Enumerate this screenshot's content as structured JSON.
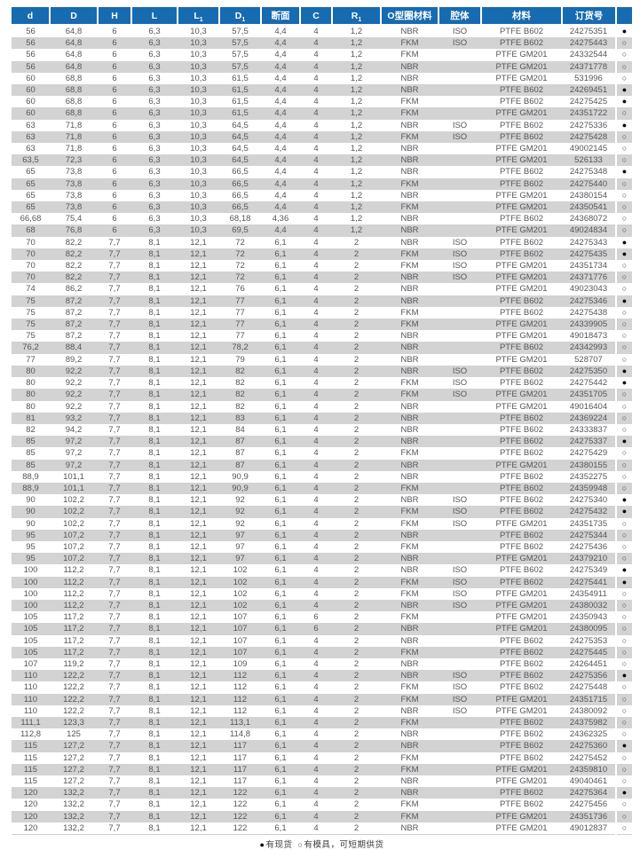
{
  "colors": {
    "header_bg": "#176bb0",
    "row_alt_bg": "#d3d3d3",
    "text": "#55565b"
  },
  "table": {
    "columns": [
      {
        "key": "d",
        "label": "d",
        "sub": ""
      },
      {
        "key": "D",
        "label": "D",
        "sub": ""
      },
      {
        "key": "H",
        "label": "H",
        "sub": ""
      },
      {
        "key": "L",
        "label": "L",
        "sub": ""
      },
      {
        "key": "L1",
        "label": "L",
        "sub": "1"
      },
      {
        "key": "D1",
        "label": "D",
        "sub": "1"
      },
      {
        "key": "cross-section",
        "label": "断面",
        "sub": ""
      },
      {
        "key": "C",
        "label": "C",
        "sub": ""
      },
      {
        "key": "R1",
        "label": "R",
        "sub": "1"
      },
      {
        "key": "o-ring-material",
        "label": "O型圈材料",
        "sub": ""
      },
      {
        "key": "cavity",
        "label": "腔体",
        "sub": ""
      },
      {
        "key": "material",
        "label": "材料",
        "sub": ""
      },
      {
        "key": "order-number",
        "label": "订货号",
        "sub": ""
      },
      {
        "key": "availability",
        "label": "",
        "sub": ""
      }
    ],
    "rows": [
      [
        "56",
        "64,8",
        "6",
        "6,3",
        "10,3",
        "57,5",
        "4,4",
        "4",
        "1,2",
        "NBR",
        "ISO",
        "PTFE B602",
        "24275351",
        "●"
      ],
      [
        "56",
        "64,8",
        "6",
        "6,3",
        "10,3",
        "57,5",
        "4,4",
        "4",
        "1,2",
        "FKM",
        "ISO",
        "PTFE B602",
        "24275443",
        "○"
      ],
      [
        "56",
        "64,8",
        "6",
        "6,3",
        "10,3",
        "57,5",
        "4,4",
        "4",
        "1,2",
        "FKM",
        "",
        "PTFE GM201",
        "24332544",
        "○"
      ],
      [
        "56",
        "64,8",
        "6",
        "6,3",
        "10,3",
        "57,5",
        "4,4",
        "4",
        "1,2",
        "NBR",
        "",
        "PTFE GM201",
        "24371778",
        "○"
      ],
      [
        "60",
        "68,8",
        "6",
        "6,3",
        "10,3",
        "61,5",
        "4,4",
        "4",
        "1,2",
        "NBR",
        "",
        "PTFE GM201",
        "531996",
        "○"
      ],
      [
        "60",
        "68,8",
        "6",
        "6,3",
        "10,3",
        "61,5",
        "4,4",
        "4",
        "1,2",
        "NBR",
        "",
        "PTFE B602",
        "24269451",
        "●"
      ],
      [
        "60",
        "68,8",
        "6",
        "6,3",
        "10,3",
        "61,5",
        "4,4",
        "4",
        "1,2",
        "FKM",
        "",
        "PTFE B602",
        "24275425",
        "●"
      ],
      [
        "60",
        "68,8",
        "6",
        "6,3",
        "10,3",
        "61,5",
        "4,4",
        "4",
        "1,2",
        "FKM",
        "",
        "PTFE GM201",
        "24351722",
        "○"
      ],
      [
        "63",
        "71,8",
        "6",
        "6,3",
        "10,3",
        "64,5",
        "4,4",
        "4",
        "1,2",
        "NBR",
        "ISO",
        "PTFE B602",
        "24275336",
        "●"
      ],
      [
        "63",
        "71,8",
        "6",
        "6,3",
        "10,3",
        "64,5",
        "4,4",
        "4",
        "1,2",
        "FKM",
        "ISO",
        "PTFE B602",
        "24275428",
        "○"
      ],
      [
        "63",
        "71,8",
        "6",
        "6,3",
        "10,3",
        "64,5",
        "4,4",
        "4",
        "1,2",
        "NBR",
        "",
        "PTFE GM201",
        "49002145",
        "○"
      ],
      [
        "63,5",
        "72,3",
        "6",
        "6,3",
        "10,3",
        "64,5",
        "4,4",
        "4",
        "1,2",
        "NBR",
        "",
        "PTFE GM201",
        "526133",
        "○"
      ],
      [
        "65",
        "73,8",
        "6",
        "6,3",
        "10,3",
        "66,5",
        "4,4",
        "4",
        "1,2",
        "NBR",
        "",
        "PTFE B602",
        "24275348",
        "●"
      ],
      [
        "65",
        "73,8",
        "6",
        "6,3",
        "10,3",
        "66,5",
        "4,4",
        "4",
        "1,2",
        "FKM",
        "",
        "PTFE B602",
        "24275440",
        "○"
      ],
      [
        "65",
        "73,8",
        "6",
        "6,3",
        "10,3",
        "66,5",
        "4,4",
        "4",
        "1,2",
        "NBR",
        "",
        "PTFE GM201",
        "24380154",
        "○"
      ],
      [
        "65",
        "73,8",
        "6",
        "6,3",
        "10,3",
        "66,5",
        "4,4",
        "4",
        "1,2",
        "FKM",
        "",
        "PTFE GM201",
        "24350541",
        "○"
      ],
      [
        "66,68",
        "75,4",
        "6",
        "6,3",
        "10,3",
        "68,18",
        "4,36",
        "4",
        "1,2",
        "NBR",
        "",
        "PTFE B602",
        "24368072",
        "○"
      ],
      [
        "68",
        "76,8",
        "6",
        "6,3",
        "10,3",
        "69,5",
        "4,4",
        "4",
        "1,2",
        "NBR",
        "",
        "PTFE GM201",
        "49024834",
        "○"
      ],
      [
        "70",
        "82,2",
        "7,7",
        "8,1",
        "12,1",
        "72",
        "6,1",
        "4",
        "2",
        "NBR",
        "ISO",
        "PTFE B602",
        "24275343",
        "●"
      ],
      [
        "70",
        "82,2",
        "7,7",
        "8,1",
        "12,1",
        "72",
        "6,1",
        "4",
        "2",
        "FKM",
        "ISO",
        "PTFE B602",
        "24275435",
        "●"
      ],
      [
        "70",
        "82,2",
        "7,7",
        "8,1",
        "12,1",
        "72",
        "6,1",
        "4",
        "2",
        "FKM",
        "ISO",
        "PTFE GM201",
        "24351734",
        "○"
      ],
      [
        "70",
        "82,2",
        "7,7",
        "8,1",
        "12,1",
        "72",
        "6,1",
        "4",
        "2",
        "NBR",
        "ISO",
        "PTFE GM201",
        "24371776",
        "○"
      ],
      [
        "74",
        "86,2",
        "7,7",
        "8,1",
        "12,1",
        "76",
        "6,1",
        "4",
        "2",
        "NBR",
        "",
        "PTFE GM201",
        "49023043",
        "○"
      ],
      [
        "75",
        "87,2",
        "7,7",
        "8,1",
        "12,1",
        "77",
        "6,1",
        "4",
        "2",
        "NBR",
        "",
        "PTFE B602",
        "24275346",
        "●"
      ],
      [
        "75",
        "87,2",
        "7,7",
        "8,1",
        "12,1",
        "77",
        "6,1",
        "4",
        "2",
        "FKM",
        "",
        "PTFE B602",
        "24275438",
        "○"
      ],
      [
        "75",
        "87,2",
        "7,7",
        "8,1",
        "12,1",
        "77",
        "6,1",
        "4",
        "2",
        "FKM",
        "",
        "PTFE GM201",
        "24339905",
        "○"
      ],
      [
        "75",
        "87,2",
        "7,7",
        "8,1",
        "12,1",
        "77",
        "6,1",
        "4",
        "2",
        "NBR",
        "",
        "PTFE GM201",
        "49018473",
        "○"
      ],
      [
        "76,2",
        "88,4",
        "7,7",
        "8,1",
        "12,1",
        "78,2",
        "6,1",
        "4",
        "2",
        "NBR",
        "",
        "PTFE B602",
        "24342993",
        "○"
      ],
      [
        "77",
        "89,2",
        "7,7",
        "8,1",
        "12,1",
        "79",
        "6,1",
        "4",
        "2",
        "NBR",
        "",
        "PTFE GM201",
        "528707",
        "○"
      ],
      [
        "80",
        "92,2",
        "7,7",
        "8,1",
        "12,1",
        "82",
        "6,1",
        "4",
        "2",
        "NBR",
        "ISO",
        "PTFE B602",
        "24275350",
        "●"
      ],
      [
        "80",
        "92,2",
        "7,7",
        "8,1",
        "12,1",
        "82",
        "6,1",
        "4",
        "2",
        "FKM",
        "ISO",
        "PTFE B602",
        "24275442",
        "●"
      ],
      [
        "80",
        "92,2",
        "7,7",
        "8,1",
        "12,1",
        "82",
        "6,1",
        "4",
        "2",
        "FKM",
        "ISO",
        "PTFE GM201",
        "24351705",
        "○"
      ],
      [
        "80",
        "92,2",
        "7,7",
        "8,1",
        "12,1",
        "82",
        "6,1",
        "4",
        "2",
        "NBR",
        "",
        "PTFE GM201",
        "49016404",
        "○"
      ],
      [
        "81",
        "93,2",
        "7,7",
        "8,1",
        "12,1",
        "83",
        "6,1",
        "4",
        "2",
        "NBR",
        "",
        "PTFE B602",
        "24369224",
        "○"
      ],
      [
        "82",
        "94,2",
        "7,7",
        "8,1",
        "12,1",
        "84",
        "6,1",
        "4",
        "2",
        "NBR",
        "",
        "PTFE B602",
        "24333837",
        "○"
      ],
      [
        "85",
        "97,2",
        "7,7",
        "8,1",
        "12,1",
        "87",
        "6,1",
        "4",
        "2",
        "NBR",
        "",
        "PTFE B602",
        "24275337",
        "●"
      ],
      [
        "85",
        "97,2",
        "7,7",
        "8,1",
        "12,1",
        "87",
        "6,1",
        "4",
        "2",
        "FKM",
        "",
        "PTFE B602",
        "24275429",
        "○"
      ],
      [
        "85",
        "97,2",
        "7,7",
        "8,1",
        "12,1",
        "87",
        "6,1",
        "4",
        "2",
        "NBR",
        "",
        "PTFE GM201",
        "24380155",
        "○"
      ],
      [
        "88,9",
        "101,1",
        "7,7",
        "8,1",
        "12,1",
        "90,9",
        "6,1",
        "4",
        "2",
        "NBR",
        "",
        "PTFE B602",
        "24352275",
        "○"
      ],
      [
        "88,9",
        "101,1",
        "7,7",
        "8,1",
        "12,1",
        "90,9",
        "6,1",
        "4",
        "2",
        "FKM",
        "",
        "PTFE B602",
        "24359948",
        "○"
      ],
      [
        "90",
        "102,2",
        "7,7",
        "8,1",
        "12,1",
        "92",
        "6,1",
        "4",
        "2",
        "NBR",
        "ISO",
        "PTFE B602",
        "24275340",
        "●"
      ],
      [
        "90",
        "102,2",
        "7,7",
        "8,1",
        "12,1",
        "92",
        "6,1",
        "4",
        "2",
        "FKM",
        "ISO",
        "PTFE B602",
        "24275432",
        "●"
      ],
      [
        "90",
        "102,2",
        "7,7",
        "8,1",
        "12,1",
        "92",
        "6,1",
        "4",
        "2",
        "FKM",
        "ISO",
        "PTFE GM201",
        "24351735",
        "○"
      ],
      [
        "95",
        "107,2",
        "7,7",
        "8,1",
        "12,1",
        "97",
        "6,1",
        "4",
        "2",
        "NBR",
        "",
        "PTFE B602",
        "24275344",
        "○"
      ],
      [
        "95",
        "107,2",
        "7,7",
        "8,1",
        "12,1",
        "97",
        "6,1",
        "4",
        "2",
        "FKM",
        "",
        "PTFE B602",
        "24275436",
        "○"
      ],
      [
        "95",
        "107,2",
        "7,7",
        "8,1",
        "12,1",
        "97",
        "6,1",
        "4",
        "2",
        "NBR",
        "",
        "PTFE GM201",
        "24379210",
        "○"
      ],
      [
        "100",
        "112,2",
        "7,7",
        "8,1",
        "12,1",
        "102",
        "6,1",
        "4",
        "2",
        "NBR",
        "ISO",
        "PTFE B602",
        "24275349",
        "●"
      ],
      [
        "100",
        "112,2",
        "7,7",
        "8,1",
        "12,1",
        "102",
        "6,1",
        "4",
        "2",
        "FKM",
        "ISO",
        "PTFE B602",
        "24275441",
        "●"
      ],
      [
        "100",
        "112,2",
        "7,7",
        "8,1",
        "12,1",
        "102",
        "6,1",
        "4",
        "2",
        "FKM",
        "ISO",
        "PTFE GM201",
        "24354911",
        "○"
      ],
      [
        "100",
        "112,2",
        "7,7",
        "8,1",
        "12,1",
        "102",
        "6,1",
        "4",
        "2",
        "NBR",
        "ISO",
        "PTFE GM201",
        "24380032",
        "○"
      ],
      [
        "105",
        "117,2",
        "7,7",
        "8,1",
        "12,1",
        "107",
        "6,1",
        "6",
        "2",
        "FKM",
        "",
        "PTFE GM201",
        "24350943",
        "○"
      ],
      [
        "105",
        "117,2",
        "7,7",
        "8,1",
        "12,1",
        "107",
        "6,1",
        "6",
        "2",
        "NBR",
        "",
        "PTFE GM201",
        "24380095",
        "○"
      ],
      [
        "105",
        "117,2",
        "7,7",
        "8,1",
        "12,1",
        "107",
        "6,1",
        "4",
        "2",
        "NBR",
        "",
        "PTFE B602",
        "24275353",
        "○"
      ],
      [
        "105",
        "117,2",
        "7,7",
        "8,1",
        "12,1",
        "107",
        "6,1",
        "4",
        "2",
        "FKM",
        "",
        "PTFE B602",
        "24275445",
        "○"
      ],
      [
        "107",
        "119,2",
        "7,7",
        "8,1",
        "12,1",
        "109",
        "6,1",
        "4",
        "2",
        "NBR",
        "",
        "PTFE B602",
        "24264451",
        "○"
      ],
      [
        "110",
        "122,2",
        "7,7",
        "8,1",
        "12,1",
        "112",
        "6,1",
        "4",
        "2",
        "NBR",
        "ISO",
        "PTFE B602",
        "24275356",
        "●"
      ],
      [
        "110",
        "122,2",
        "7,7",
        "8,1",
        "12,1",
        "112",
        "6,1",
        "4",
        "2",
        "FKM",
        "ISO",
        "PTFE B602",
        "24275448",
        "○"
      ],
      [
        "110",
        "122,2",
        "7,7",
        "8,1",
        "12,1",
        "112",
        "6,1",
        "4",
        "2",
        "FKM",
        "ISO",
        "PTFE GM201",
        "24351715",
        "○"
      ],
      [
        "110",
        "122,2",
        "7,7",
        "8,1",
        "12,1",
        "112",
        "6,1",
        "4",
        "2",
        "NBR",
        "ISO",
        "PTFE GM201",
        "24380092",
        "○"
      ],
      [
        "111,1",
        "123,3",
        "7,7",
        "8,1",
        "12,1",
        "113,1",
        "6,1",
        "4",
        "2",
        "FKM",
        "",
        "PTFE B602",
        "24375982",
        "○"
      ],
      [
        "112,8",
        "125",
        "7,7",
        "8,1",
        "12,1",
        "114,8",
        "6,1",
        "4",
        "2",
        "NBR",
        "",
        "PTFE B602",
        "24362325",
        "○"
      ],
      [
        "115",
        "127,2",
        "7,7",
        "8,1",
        "12,1",
        "117",
        "6,1",
        "4",
        "2",
        "NBR",
        "",
        "PTFE B602",
        "24275360",
        "●"
      ],
      [
        "115",
        "127,2",
        "7,7",
        "8,1",
        "12,1",
        "117",
        "6,1",
        "4",
        "2",
        "FKM",
        "",
        "PTFE B602",
        "24275452",
        "○"
      ],
      [
        "115",
        "127,2",
        "7,7",
        "8,1",
        "12,1",
        "117",
        "6,1",
        "4",
        "2",
        "FKM",
        "",
        "PTFE GM201",
        "24359810",
        "○"
      ],
      [
        "115",
        "127,2",
        "7,7",
        "8,1",
        "12,1",
        "117",
        "6,1",
        "4",
        "2",
        "NBR",
        "",
        "PTFE GM201",
        "49040461",
        "○"
      ],
      [
        "120",
        "132,2",
        "7,7",
        "8,1",
        "12,1",
        "122",
        "6,1",
        "4",
        "2",
        "NBR",
        "",
        "PTFE B602",
        "24275364",
        "●"
      ],
      [
        "120",
        "132,2",
        "7,7",
        "8,1",
        "12,1",
        "122",
        "6,1",
        "4",
        "2",
        "FKM",
        "",
        "PTFE B602",
        "24275456",
        "○"
      ],
      [
        "120",
        "132,2",
        "7,7",
        "8,1",
        "12,1",
        "122",
        "6,1",
        "4",
        "2",
        "FKM",
        "",
        "PTFE GM201",
        "24351736",
        "○"
      ],
      [
        "120",
        "132,2",
        "7,7",
        "8,1",
        "12,1",
        "122",
        "6,1",
        "4",
        "2",
        "NBR",
        "",
        "PTFE GM201",
        "49012837",
        "○"
      ]
    ]
  },
  "legend": {
    "in_stock_symbol": "●",
    "in_stock_label": "有现货",
    "mould_symbol": "○",
    "mould_label": "有模具，可短期供货"
  }
}
